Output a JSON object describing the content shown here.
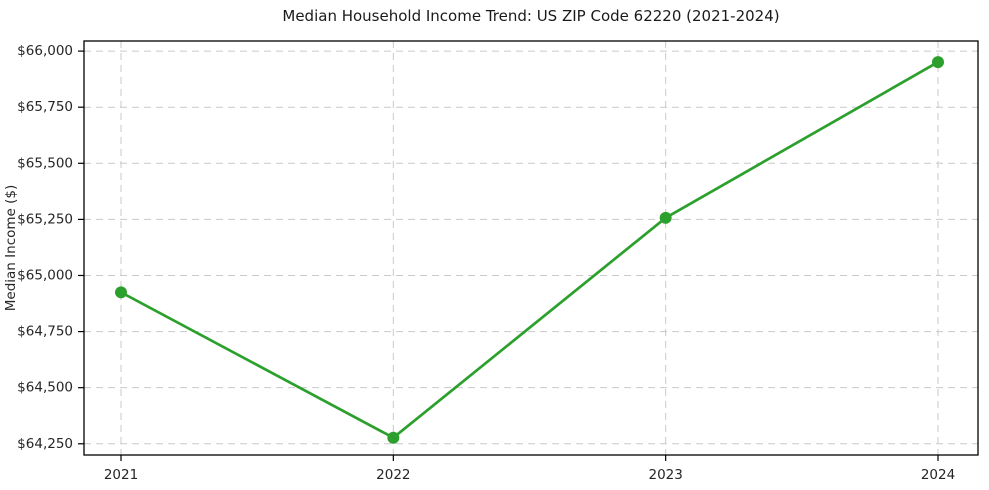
{
  "chart_data": {
    "type": "line",
    "title": "Median Household Income Trend: US ZIP Code 62220 (2021-2024)",
    "xlabel": "",
    "ylabel": "Median Income ($)",
    "categories": [
      "2021",
      "2022",
      "2023",
      "2024"
    ],
    "series": [
      {
        "name": "Median Household Income",
        "values": [
          64925,
          64277,
          65257,
          65951
        ]
      }
    ],
    "ylim": [
      64200,
      66045
    ],
    "yticks": [
      64250,
      64500,
      64750,
      65000,
      65250,
      65500,
      65750,
      66000
    ],
    "ytick_labels": [
      "$64,250",
      "$64,500",
      "$64,750",
      "$65,000",
      "$65,250",
      "$65,500",
      "$65,750",
      "$66,000"
    ],
    "grid": true,
    "grid_style": "dashed",
    "legend": false,
    "colors": {
      "line": "#2ca02c",
      "marker": "#2ca02c",
      "grid": "#c9c9c9",
      "spine": "#000000",
      "text": "#262626",
      "background": "#ffffff"
    }
  }
}
